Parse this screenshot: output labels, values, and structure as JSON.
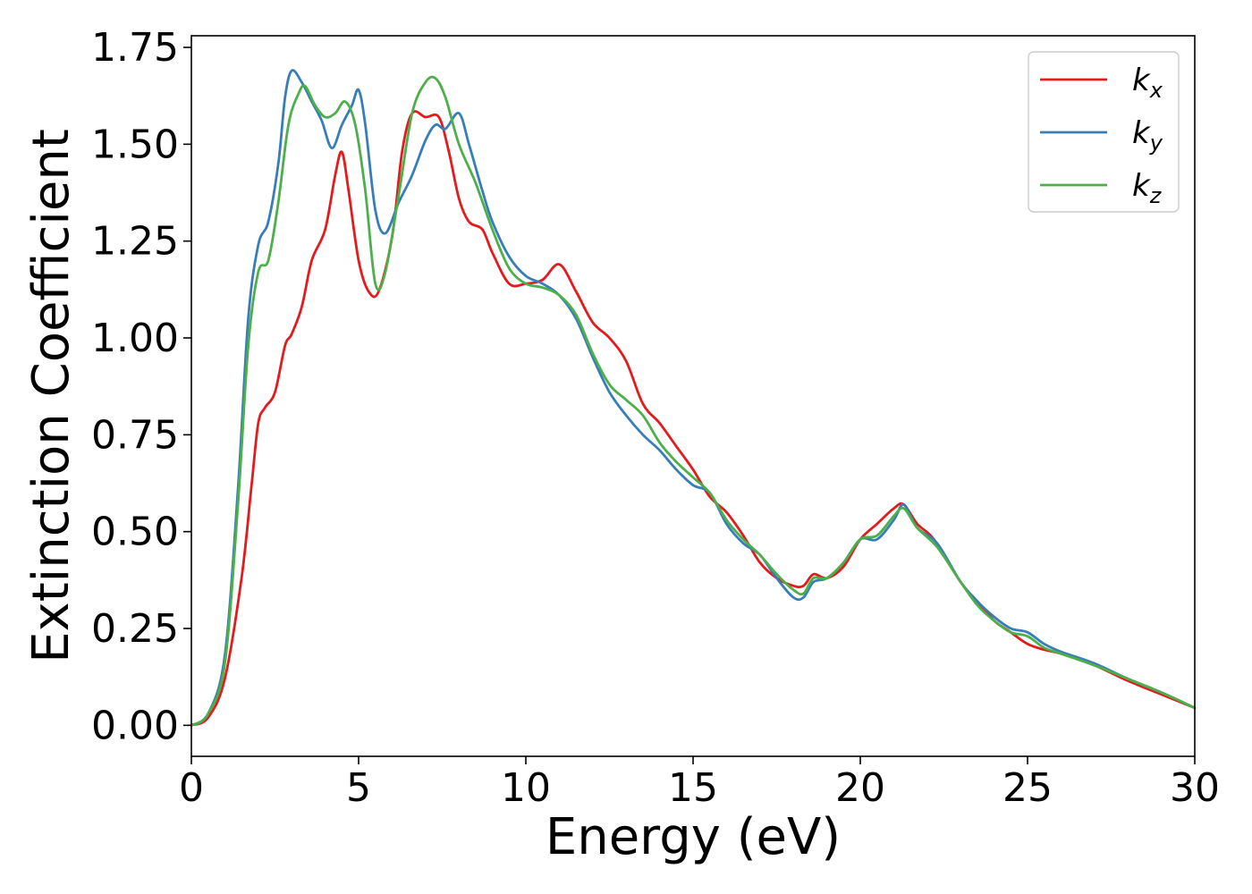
{
  "chart_data": {
    "type": "line",
    "title": "",
    "xlabel": "Energy (eV)",
    "ylabel": "Extinction Coefficient",
    "xlim": [
      0,
      30
    ],
    "ylim": [
      -0.08,
      1.78
    ],
    "xticks": [
      0,
      5,
      10,
      15,
      20,
      25,
      30
    ],
    "xtick_labels": [
      "0",
      "5",
      "10",
      "15",
      "20",
      "25",
      "30"
    ],
    "yticks": [
      0.0,
      0.25,
      0.5,
      0.75,
      1.0,
      1.25,
      1.5,
      1.75
    ],
    "ytick_labels": [
      "0.00",
      "0.25",
      "0.50",
      "0.75",
      "1.00",
      "1.25",
      "1.50",
      "1.75"
    ],
    "grid": false,
    "legend_position": "top-right",
    "series": [
      {
        "name": "k_x",
        "symbol": "k",
        "subscript": "x",
        "color": "#e41a1c",
        "points": [
          [
            0,
            0
          ],
          [
            0.5,
            0.02
          ],
          [
            1.0,
            0.12
          ],
          [
            1.5,
            0.38
          ],
          [
            1.8,
            0.62
          ],
          [
            2.0,
            0.78
          ],
          [
            2.2,
            0.82
          ],
          [
            2.5,
            0.86
          ],
          [
            2.8,
            0.98
          ],
          [
            3.0,
            1.01
          ],
          [
            3.3,
            1.08
          ],
          [
            3.6,
            1.2
          ],
          [
            4.0,
            1.28
          ],
          [
            4.3,
            1.42
          ],
          [
            4.5,
            1.48
          ],
          [
            4.7,
            1.38
          ],
          [
            5.0,
            1.2
          ],
          [
            5.3,
            1.12
          ],
          [
            5.6,
            1.12
          ],
          [
            6.0,
            1.26
          ],
          [
            6.3,
            1.48
          ],
          [
            6.6,
            1.58
          ],
          [
            7.0,
            1.57
          ],
          [
            7.4,
            1.57
          ],
          [
            7.7,
            1.48
          ],
          [
            8.0,
            1.36
          ],
          [
            8.3,
            1.3
          ],
          [
            8.7,
            1.28
          ],
          [
            9.0,
            1.22
          ],
          [
            9.5,
            1.14
          ],
          [
            10.0,
            1.14
          ],
          [
            10.5,
            1.15
          ],
          [
            11.0,
            1.19
          ],
          [
            11.5,
            1.12
          ],
          [
            12.0,
            1.04
          ],
          [
            12.5,
            1.0
          ],
          [
            13.0,
            0.94
          ],
          [
            13.5,
            0.83
          ],
          [
            14.0,
            0.78
          ],
          [
            14.5,
            0.72
          ],
          [
            15.0,
            0.66
          ],
          [
            15.5,
            0.59
          ],
          [
            16.0,
            0.55
          ],
          [
            16.5,
            0.49
          ],
          [
            17.0,
            0.42
          ],
          [
            17.5,
            0.38
          ],
          [
            18.0,
            0.36
          ],
          [
            18.3,
            0.36
          ],
          [
            18.6,
            0.39
          ],
          [
            19.0,
            0.38
          ],
          [
            19.5,
            0.41
          ],
          [
            20.0,
            0.48
          ],
          [
            20.5,
            0.52
          ],
          [
            21.0,
            0.56
          ],
          [
            21.3,
            0.57
          ],
          [
            21.7,
            0.52
          ],
          [
            22.2,
            0.48
          ],
          [
            23.0,
            0.37
          ],
          [
            23.5,
            0.32
          ],
          [
            24.0,
            0.27
          ],
          [
            24.5,
            0.24
          ],
          [
            25.0,
            0.21
          ],
          [
            25.5,
            0.195
          ],
          [
            26.0,
            0.185
          ],
          [
            27.0,
            0.155
          ],
          [
            28.0,
            0.115
          ],
          [
            29.0,
            0.08
          ],
          [
            30.0,
            0.045
          ]
        ]
      },
      {
        "name": "k_y",
        "symbol": "k",
        "subscript": "y",
        "color": "#377eb8",
        "points": [
          [
            0,
            0
          ],
          [
            0.5,
            0.03
          ],
          [
            1.0,
            0.18
          ],
          [
            1.4,
            0.62
          ],
          [
            1.7,
            1.05
          ],
          [
            2.0,
            1.24
          ],
          [
            2.3,
            1.3
          ],
          [
            2.6,
            1.45
          ],
          [
            2.8,
            1.62
          ],
          [
            3.0,
            1.69
          ],
          [
            3.3,
            1.66
          ],
          [
            3.6,
            1.61
          ],
          [
            3.9,
            1.56
          ],
          [
            4.2,
            1.49
          ],
          [
            4.5,
            1.55
          ],
          [
            4.8,
            1.6
          ],
          [
            5.0,
            1.64
          ],
          [
            5.2,
            1.55
          ],
          [
            5.5,
            1.33
          ],
          [
            5.8,
            1.27
          ],
          [
            6.2,
            1.35
          ],
          [
            6.6,
            1.42
          ],
          [
            7.0,
            1.51
          ],
          [
            7.3,
            1.55
          ],
          [
            7.6,
            1.54
          ],
          [
            8.0,
            1.58
          ],
          [
            8.3,
            1.5
          ],
          [
            8.7,
            1.38
          ],
          [
            9.0,
            1.3
          ],
          [
            9.5,
            1.21
          ],
          [
            10.0,
            1.16
          ],
          [
            10.5,
            1.14
          ],
          [
            11.0,
            1.11
          ],
          [
            11.5,
            1.05
          ],
          [
            12.0,
            0.95
          ],
          [
            12.5,
            0.86
          ],
          [
            13.0,
            0.8
          ],
          [
            13.5,
            0.75
          ],
          [
            14.0,
            0.71
          ],
          [
            14.5,
            0.66
          ],
          [
            15.0,
            0.62
          ],
          [
            15.5,
            0.6
          ],
          [
            16.0,
            0.52
          ],
          [
            16.5,
            0.47
          ],
          [
            17.0,
            0.44
          ],
          [
            17.5,
            0.38
          ],
          [
            18.0,
            0.33
          ],
          [
            18.3,
            0.33
          ],
          [
            18.6,
            0.37
          ],
          [
            19.0,
            0.38
          ],
          [
            19.5,
            0.42
          ],
          [
            20.0,
            0.48
          ],
          [
            20.5,
            0.48
          ],
          [
            21.0,
            0.53
          ],
          [
            21.3,
            0.57
          ],
          [
            21.7,
            0.51
          ],
          [
            22.3,
            0.47
          ],
          [
            23.0,
            0.37
          ],
          [
            23.5,
            0.32
          ],
          [
            24.0,
            0.28
          ],
          [
            24.5,
            0.25
          ],
          [
            25.0,
            0.24
          ],
          [
            25.5,
            0.21
          ],
          [
            26.0,
            0.19
          ],
          [
            27.0,
            0.16
          ],
          [
            28.0,
            0.12
          ],
          [
            29.0,
            0.085
          ],
          [
            30.0,
            0.045
          ]
        ]
      },
      {
        "name": "k_z",
        "symbol": "k",
        "subscript": "z",
        "color": "#4daf4a",
        "points": [
          [
            0,
            0
          ],
          [
            0.5,
            0.03
          ],
          [
            1.0,
            0.16
          ],
          [
            1.4,
            0.58
          ],
          [
            1.7,
            0.98
          ],
          [
            2.0,
            1.17
          ],
          [
            2.3,
            1.2
          ],
          [
            2.6,
            1.35
          ],
          [
            2.9,
            1.55
          ],
          [
            3.2,
            1.63
          ],
          [
            3.4,
            1.65
          ],
          [
            3.7,
            1.6
          ],
          [
            4.0,
            1.57
          ],
          [
            4.3,
            1.58
          ],
          [
            4.6,
            1.61
          ],
          [
            4.9,
            1.55
          ],
          [
            5.2,
            1.38
          ],
          [
            5.5,
            1.14
          ],
          [
            5.8,
            1.17
          ],
          [
            6.2,
            1.37
          ],
          [
            6.6,
            1.58
          ],
          [
            7.0,
            1.66
          ],
          [
            7.3,
            1.67
          ],
          [
            7.6,
            1.62
          ],
          [
            8.0,
            1.5
          ],
          [
            8.5,
            1.4
          ],
          [
            9.0,
            1.28
          ],
          [
            9.5,
            1.18
          ],
          [
            10.0,
            1.14
          ],
          [
            10.5,
            1.13
          ],
          [
            11.0,
            1.11
          ],
          [
            11.5,
            1.06
          ],
          [
            12.0,
            0.96
          ],
          [
            12.5,
            0.88
          ],
          [
            13.0,
            0.84
          ],
          [
            13.5,
            0.8
          ],
          [
            14.0,
            0.73
          ],
          [
            14.5,
            0.68
          ],
          [
            15.0,
            0.64
          ],
          [
            15.5,
            0.6
          ],
          [
            16.0,
            0.53
          ],
          [
            16.5,
            0.48
          ],
          [
            17.0,
            0.44
          ],
          [
            17.5,
            0.39
          ],
          [
            18.0,
            0.35
          ],
          [
            18.3,
            0.34
          ],
          [
            18.6,
            0.38
          ],
          [
            19.0,
            0.38
          ],
          [
            19.5,
            0.42
          ],
          [
            20.0,
            0.48
          ],
          [
            20.5,
            0.49
          ],
          [
            21.0,
            0.54
          ],
          [
            21.3,
            0.56
          ],
          [
            21.7,
            0.51
          ],
          [
            22.3,
            0.46
          ],
          [
            23.0,
            0.37
          ],
          [
            23.5,
            0.31
          ],
          [
            24.0,
            0.27
          ],
          [
            24.5,
            0.24
          ],
          [
            25.0,
            0.23
          ],
          [
            25.5,
            0.2
          ],
          [
            26.0,
            0.185
          ],
          [
            27.0,
            0.155
          ],
          [
            28.0,
            0.12
          ],
          [
            29.0,
            0.085
          ],
          [
            30.0,
            0.045
          ]
        ]
      }
    ]
  }
}
